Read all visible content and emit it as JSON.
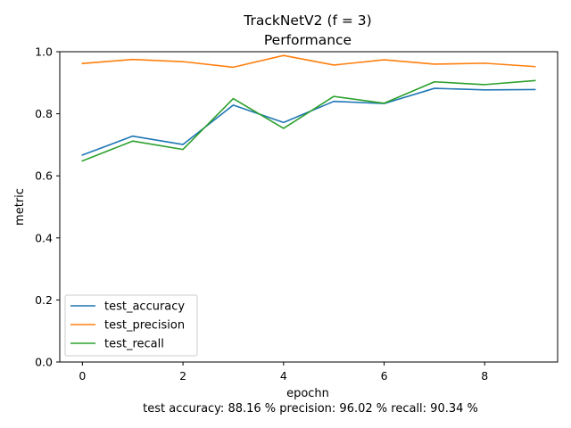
{
  "chart_data": {
    "type": "line",
    "title_line1": "TrackNetV2 (f = 3)",
    "title_line2": "Performance",
    "xlabel": "epochn",
    "ylabel": "metric",
    "caption": "test  accuracy: 88.16 %  precision: 96.02 %  recall: 90.34 %",
    "x": [
      0,
      1,
      2,
      3,
      4,
      5,
      6,
      7,
      8,
      9
    ],
    "xlim": [
      -0.45,
      9.45
    ],
    "ylim": [
      0.0,
      1.0
    ],
    "xticks": [
      0,
      2,
      4,
      6,
      8
    ],
    "xtick_labels": [
      "0",
      "2",
      "4",
      "6",
      "8"
    ],
    "yticks": [
      0.0,
      0.2,
      0.4,
      0.6,
      0.8,
      1.0
    ],
    "ytick_labels": [
      "0.0",
      "0.2",
      "0.4",
      "0.6",
      "0.8",
      "1.0"
    ],
    "grid": false,
    "legend_position": "lower-left",
    "series": [
      {
        "name": "test_accuracy",
        "color": "#1f77b4",
        "values": [
          0.667,
          0.728,
          0.701,
          0.828,
          0.772,
          0.84,
          0.833,
          0.882,
          0.877,
          0.878
        ]
      },
      {
        "name": "test_precision",
        "color": "#ff7f0e",
        "values": [
          0.962,
          0.975,
          0.968,
          0.95,
          0.988,
          0.957,
          0.974,
          0.96,
          0.963,
          0.952
        ]
      },
      {
        "name": "test_recall",
        "color": "#2ca02c",
        "values": [
          0.648,
          0.712,
          0.685,
          0.849,
          0.753,
          0.856,
          0.834,
          0.903,
          0.894,
          0.907
        ]
      }
    ]
  }
}
